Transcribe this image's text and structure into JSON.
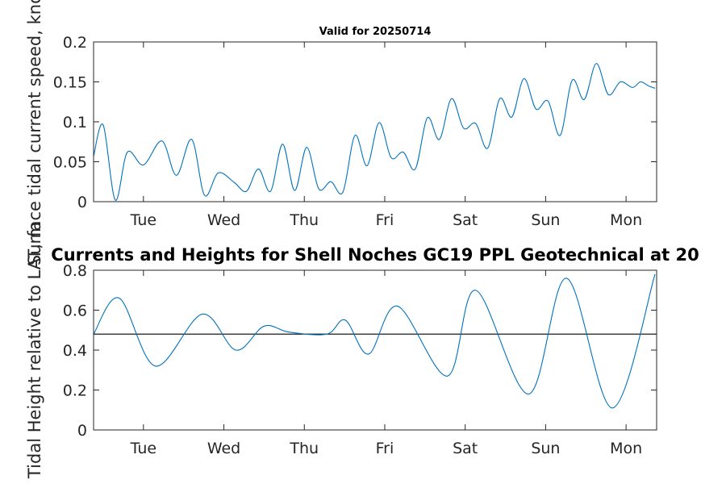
{
  "chart_data": [
    {
      "type": "line",
      "title": "Valid for 20250714",
      "ylabel": "Surface tidal current speed, knots",
      "x_ticks": [
        "Tue",
        "Wed",
        "Thu",
        "Fri",
        "Sat",
        "Sun",
        "Mon"
      ],
      "y_ticks": [
        "0",
        "0.05",
        "0.1",
        "0.15",
        "0.2"
      ],
      "ylim": [
        0,
        0.2
      ],
      "x": [
        0.0,
        0.12,
        0.27,
        0.42,
        0.62,
        0.85,
        1.03,
        1.22,
        1.38,
        1.55,
        1.75,
        1.9,
        2.05,
        2.2,
        2.35,
        2.5,
        2.65,
        2.8,
        2.95,
        3.1,
        3.25,
        3.4,
        3.55,
        3.7,
        3.85,
        4.0,
        4.15,
        4.3,
        4.45,
        4.6,
        4.75,
        4.9,
        5.05,
        5.2,
        5.35,
        5.5,
        5.65,
        5.8,
        5.95,
        6.1,
        6.25,
        6.4,
        6.55,
        6.7,
        6.8,
        6.9,
        6.98
      ],
      "values": [
        0.057,
        0.096,
        0.002,
        0.062,
        0.046,
        0.076,
        0.033,
        0.078,
        0.008,
        0.036,
        0.024,
        0.013,
        0.041,
        0.013,
        0.072,
        0.014,
        0.068,
        0.016,
        0.025,
        0.012,
        0.083,
        0.045,
        0.099,
        0.055,
        0.062,
        0.041,
        0.105,
        0.078,
        0.129,
        0.092,
        0.098,
        0.067,
        0.129,
        0.106,
        0.154,
        0.116,
        0.126,
        0.083,
        0.152,
        0.128,
        0.173,
        0.134,
        0.15,
        0.143,
        0.15,
        0.145,
        0.142
      ],
      "xlim": [
        0,
        7
      ]
    },
    {
      "type": "line",
      "title": "Currents and Heights for Shell Noches   GC19 PPL  Geotechnical at 20",
      "ylabel": "Tidal Height relative to LAT, m",
      "x_ticks": [
        "Tue",
        "Wed",
        "Thu",
        "Fri",
        "Sat",
        "Sun",
        "Mon"
      ],
      "y_ticks": [
        "0",
        "0.2",
        "0.4",
        "0.6",
        "0.8"
      ],
      "ylim": [
        0,
        0.8
      ],
      "reference_line": 0.48,
      "x": [
        0.0,
        0.32,
        0.77,
        1.35,
        1.77,
        2.12,
        2.43,
        2.9,
        3.13,
        3.42,
        3.78,
        4.4,
        4.75,
        5.41,
        5.88,
        6.45,
        6.98
      ],
      "values": [
        0.48,
        0.66,
        0.32,
        0.58,
        0.4,
        0.52,
        0.49,
        0.48,
        0.55,
        0.38,
        0.62,
        0.27,
        0.7,
        0.18,
        0.76,
        0.11,
        0.78
      ],
      "xlim": [
        0,
        7
      ]
    }
  ]
}
